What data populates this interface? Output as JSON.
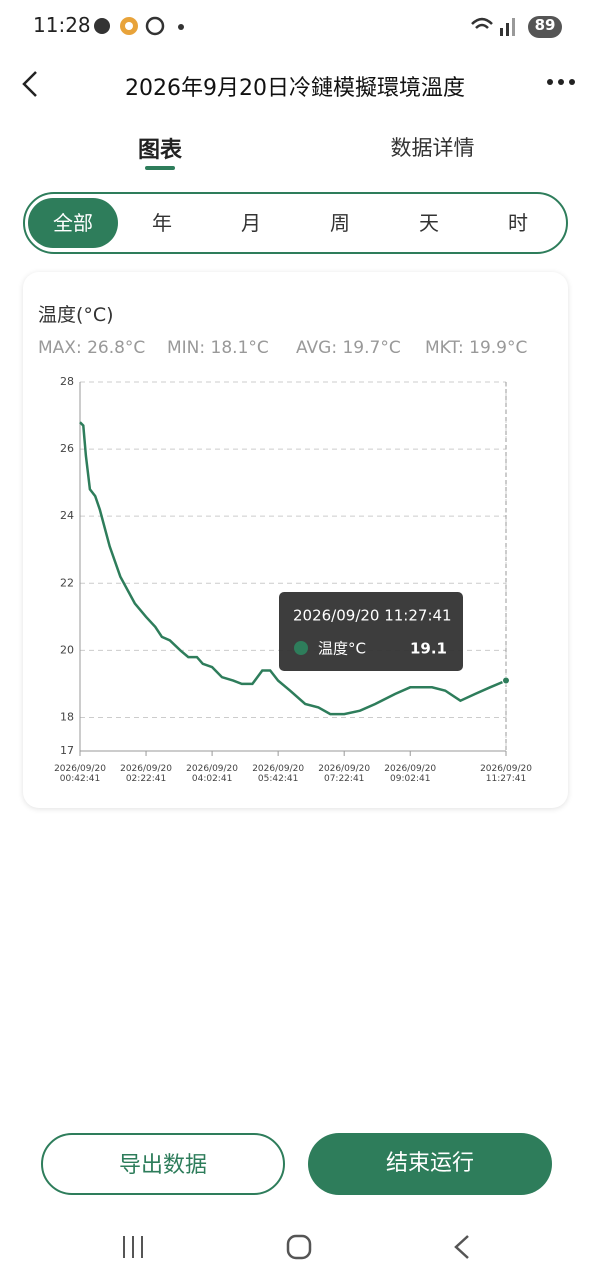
{
  "status_bar": {
    "time": "11:28",
    "battery": "89"
  },
  "header": {
    "title": "2026年9月20日冷鏈模擬環境溫度"
  },
  "tabs": [
    "图表",
    "数据详情"
  ],
  "filters": [
    "全部",
    "年",
    "月",
    "周",
    "天",
    "时"
  ],
  "stats": [
    "MAX: 26.8°C",
    "MIN: 18.1°C",
    "AVG: 19.7°C",
    "MKT: 19.9°C"
  ],
  "chart_data": {
    "type": "line",
    "title": "温度(°C)",
    "x": [
      "2026/09/20 00:42:41",
      "2026/09/20 00:47:41",
      "2026/09/20 00:51:41",
      "2026/09/20 00:57:41",
      "2026/09/20 01:05:41",
      "2026/09/20 01:12:41",
      "2026/09/20 01:27:41",
      "2026/09/20 01:43:41",
      "2026/09/20 02:05:41",
      "2026/09/20 02:22:41",
      "2026/09/20 02:36:41",
      "2026/09/20 02:46:41",
      "2026/09/20 02:58:41",
      "2026/09/20 03:14:41",
      "2026/09/20 03:26:41",
      "2026/09/20 03:39:41",
      "2026/09/20 03:48:41",
      "2026/09/20 04:02:41",
      "2026/09/20 04:17:41",
      "2026/09/20 04:34:41",
      "2026/09/20 04:47:41",
      "2026/09/20 05:03:41",
      "2026/09/20 05:18:41",
      "2026/09/20 05:30:41",
      "2026/09/20 05:42:41",
      "2026/09/20 06:00:41",
      "2026/09/20 06:23:41",
      "2026/09/20 06:43:41",
      "2026/09/20 07:01:41",
      "2026/09/20 07:22:41",
      "2026/09/20 07:46:41",
      "2026/09/20 08:09:41",
      "2026/09/20 08:39:41",
      "2026/09/20 09:02:41",
      "2026/09/20 09:35:41",
      "2026/09/20 09:55:41",
      "2026/09/20 10:18:41",
      "2026/09/20 10:40:41",
      "2026/09/20 11:03:41",
      "2026/09/20 11:27:41"
    ],
    "series": [
      {
        "name": "温度°C",
        "color": "#2e7d5b",
        "values": [
          26.8,
          26.7,
          25.8,
          24.8,
          24.6,
          24.2,
          23.1,
          22.2,
          21.4,
          21.0,
          20.7,
          20.4,
          20.3,
          20.0,
          19.8,
          19.8,
          19.6,
          19.5,
          19.2,
          19.1,
          19.0,
          19.0,
          19.4,
          19.4,
          19.1,
          18.8,
          18.4,
          18.3,
          18.1,
          18.1,
          18.2,
          18.4,
          18.7,
          18.9,
          18.9,
          18.8,
          18.5,
          18.7,
          18.9,
          19.1
        ]
      }
    ],
    "xlim": [
      "2026/09/20 00:42:41",
      "2026/09/20 11:27:41"
    ],
    "xticks": [
      "2026/09/20 00:42:41",
      "2026/09/20 02:22:41",
      "2026/09/20 04:02:41",
      "2026/09/20 05:42:41",
      "2026/09/20 07:22:41",
      "2026/09/20 09:02:41",
      "2026/09/20 11:27:41"
    ],
    "ylim": [
      17,
      28
    ],
    "yticks": [
      17,
      18,
      20,
      22,
      24,
      26,
      28
    ],
    "grid": true
  },
  "buttons": [
    "导出数据",
    "结束运行"
  ]
}
